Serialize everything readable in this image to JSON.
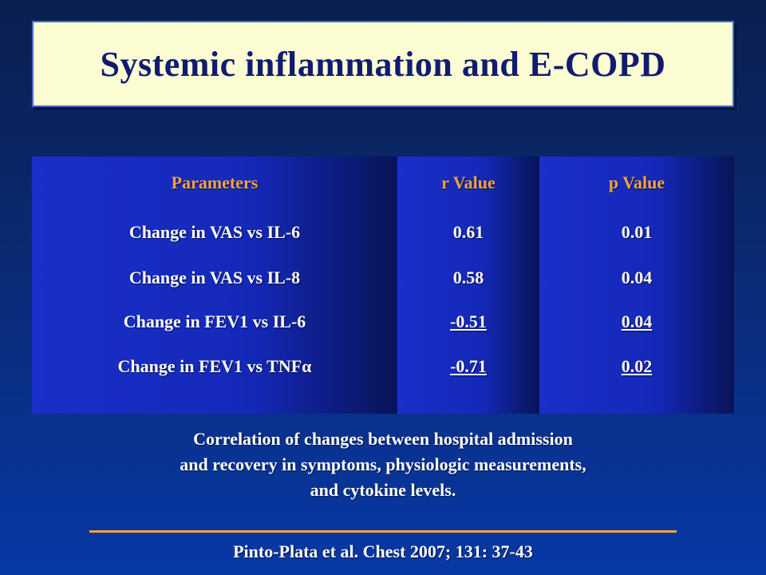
{
  "title": "Systemic inflammation and E-COPD",
  "table": {
    "headers": [
      "Parameters",
      "r Value",
      "p Value"
    ],
    "rows": [
      [
        "Change in VAS vs IL-6",
        "0.61",
        "0.01"
      ],
      [
        "Change in VAS vs IL-8",
        "0.58",
        "0.04"
      ],
      [
        "Change in FEV1 vs IL-6",
        "-0.51",
        "0.04"
      ],
      [
        "Change in FEV1 vs TNFα",
        "-0.71",
        "0.02"
      ]
    ]
  },
  "caption": {
    "line1": "Correlation of changes between hospital admission",
    "line2": "and recovery in symptoms, physiologic measurements,",
    "line3": "and cytokine levels."
  },
  "citation": "Pinto-Plata et al. Chest 2007; 131: 37-43",
  "colors": {
    "background": "#0a2a73",
    "title_box": "#fdfdd4",
    "title_text": "#111c70",
    "header_text": "#f2a23c",
    "cell_blue": "#1a2fc8",
    "divider": "#f2a23c"
  }
}
